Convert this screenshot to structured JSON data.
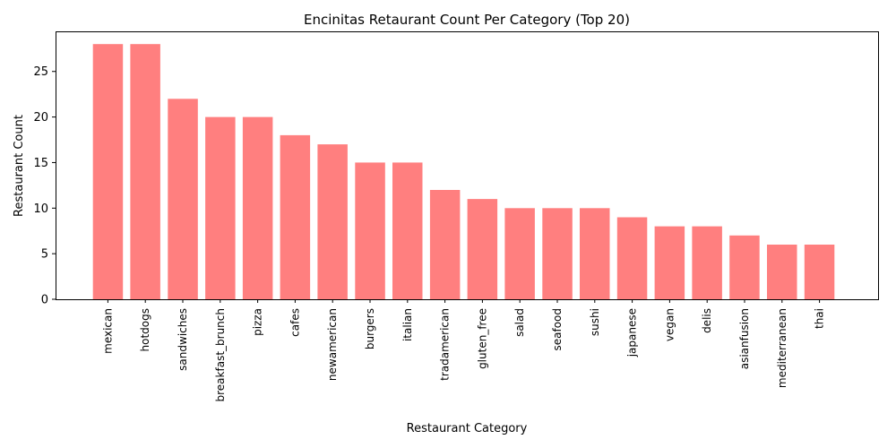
{
  "chart_data": {
    "type": "bar",
    "title": "Encinitas Retaurant Count Per Category (Top 20)",
    "xlabel": "Restaurant Category",
    "ylabel": "Restaurant Count",
    "categories": [
      "mexican",
      "hotdogs",
      "sandwiches",
      "breakfast_brunch",
      "pizza",
      "cafes",
      "newamerican",
      "burgers",
      "italian",
      "tradamerican",
      "gluten_free",
      "salad",
      "seafood",
      "sushi",
      "japanese",
      "vegan",
      "delis",
      "asianfusion",
      "mediterranean",
      "thai"
    ],
    "values": [
      28,
      28,
      22,
      20,
      20,
      18,
      17,
      15,
      15,
      12,
      11,
      10,
      10,
      10,
      9,
      8,
      8,
      7,
      6,
      6
    ],
    "ylim": [
      0,
      29.4
    ],
    "yticks": [
      "0",
      "5",
      "10",
      "15",
      "20",
      "25"
    ],
    "bar_color": "#ff7f7f",
    "grid": false
  }
}
